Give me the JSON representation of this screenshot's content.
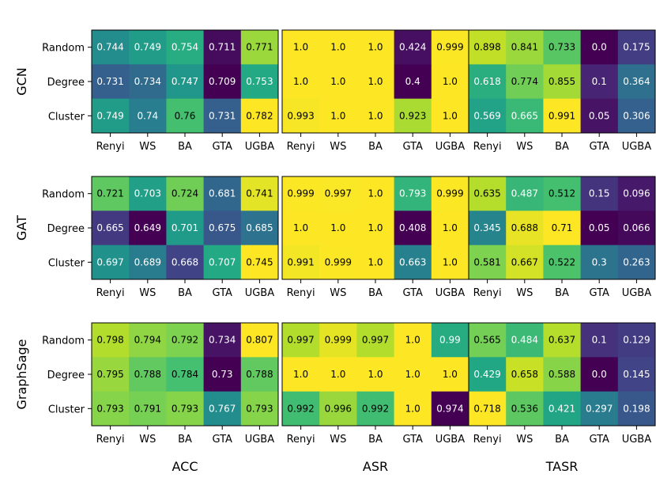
{
  "chart_data": {
    "type": "heatmap",
    "categories": [
      "Renyi",
      "WS",
      "BA",
      "GTA",
      "UGBA"
    ],
    "row_labels": [
      "Random",
      "Degree",
      "Cluster"
    ],
    "model_labels": [
      "GCN",
      "GAT",
      "GraphSage"
    ],
    "metric_labels": [
      "ACC",
      "ASR",
      "TASR"
    ],
    "colormap": "viridis",
    "panels": [
      {
        "model": "GCN",
        "metric": "ACC",
        "values": [
          [
            0.744,
            0.749,
            0.754,
            0.711,
            0.771
          ],
          [
            0.731,
            0.734,
            0.747,
            0.709,
            0.753
          ],
          [
            0.749,
            0.74,
            0.76,
            0.731,
            0.782
          ]
        ],
        "labels": [
          [
            "0.744",
            "0.749",
            "0.754",
            "0.711",
            "0.771"
          ],
          [
            "0.731",
            "0.734",
            "0.747",
            "0.709",
            "0.753"
          ],
          [
            "0.749",
            "0.74",
            "0.76",
            "0.731",
            "0.782"
          ]
        ]
      },
      {
        "model": "GCN",
        "metric": "ASR",
        "values": [
          [
            1.0,
            1.0,
            1.0,
            0.424,
            0.999
          ],
          [
            1.0,
            1.0,
            1.0,
            0.4,
            1.0
          ],
          [
            0.993,
            1.0,
            1.0,
            0.923,
            1.0
          ]
        ],
        "labels": [
          [
            "1.0",
            "1.0",
            "1.0",
            "0.424",
            "0.999"
          ],
          [
            "1.0",
            "1.0",
            "1.0",
            "0.4",
            "1.0"
          ],
          [
            "0.993",
            "1.0",
            "1.0",
            "0.923",
            "1.0"
          ]
        ]
      },
      {
        "model": "GCN",
        "metric": "TASR",
        "values": [
          [
            0.898,
            0.841,
            0.733,
            0.0,
            0.175
          ],
          [
            0.618,
            0.774,
            0.855,
            0.1,
            0.364
          ],
          [
            0.569,
            0.665,
            0.991,
            0.05,
            0.306
          ]
        ],
        "labels": [
          [
            "0.898",
            "0.841",
            "0.733",
            "0.0",
            "0.175"
          ],
          [
            "0.618",
            "0.774",
            "0.855",
            "0.1",
            "0.364"
          ],
          [
            "0.569",
            "0.665",
            "0.991",
            "0.05",
            "0.306"
          ]
        ]
      },
      {
        "model": "GAT",
        "metric": "ACC",
        "values": [
          [
            0.721,
            0.703,
            0.724,
            0.681,
            0.741
          ],
          [
            0.665,
            0.649,
            0.701,
            0.675,
            0.685
          ],
          [
            0.697,
            0.689,
            0.668,
            0.707,
            0.745
          ]
        ],
        "labels": [
          [
            "0.721",
            "0.703",
            "0.724",
            "0.681",
            "0.741"
          ],
          [
            "0.665",
            "0.649",
            "0.701",
            "0.675",
            "0.685"
          ],
          [
            "0.697",
            "0.689",
            "0.668",
            "0.707",
            "0.745"
          ]
        ]
      },
      {
        "model": "GAT",
        "metric": "ASR",
        "values": [
          [
            0.999,
            0.997,
            1.0,
            0.793,
            0.999
          ],
          [
            1.0,
            1.0,
            1.0,
            0.408,
            1.0
          ],
          [
            0.991,
            0.999,
            1.0,
            0.663,
            1.0
          ]
        ],
        "labels": [
          [
            "0.999",
            "0.997",
            "1.0",
            "0.793",
            "0.999"
          ],
          [
            "1.0",
            "1.0",
            "1.0",
            "0.408",
            "1.0"
          ],
          [
            "0.991",
            "0.999",
            "1.0",
            "0.663",
            "1.0"
          ]
        ]
      },
      {
        "model": "GAT",
        "metric": "TASR",
        "values": [
          [
            0.635,
            0.487,
            0.512,
            0.15,
            0.096
          ],
          [
            0.345,
            0.688,
            0.71,
            0.05,
            0.066
          ],
          [
            0.581,
            0.667,
            0.522,
            0.3,
            0.263
          ]
        ],
        "labels": [
          [
            "0.635",
            "0.487",
            "0.512",
            "0.15",
            "0.096"
          ],
          [
            "0.345",
            "0.688",
            "0.71",
            "0.05",
            "0.066"
          ],
          [
            "0.581",
            "0.667",
            "0.522",
            "0.3",
            "0.263"
          ]
        ]
      },
      {
        "model": "GraphSage",
        "metric": "ACC",
        "values": [
          [
            0.798,
            0.794,
            0.792,
            0.734,
            0.807
          ],
          [
            0.795,
            0.788,
            0.784,
            0.73,
            0.788
          ],
          [
            0.793,
            0.791,
            0.793,
            0.767,
            0.793
          ]
        ],
        "labels": [
          [
            "0.798",
            "0.794",
            "0.792",
            "0.734",
            "0.807"
          ],
          [
            "0.795",
            "0.788",
            "0.784",
            "0.73",
            "0.788"
          ],
          [
            "0.793",
            "0.791",
            "0.793",
            "0.767",
            "0.793"
          ]
        ]
      },
      {
        "model": "GraphSage",
        "metric": "ASR",
        "values": [
          [
            0.997,
            0.999,
            0.997,
            1.0,
            0.99
          ],
          [
            1.0,
            1.0,
            1.0,
            1.0,
            1.0
          ],
          [
            0.992,
            0.996,
            0.992,
            1.0,
            0.974
          ]
        ],
        "labels": [
          [
            "0.997",
            "0.999",
            "0.997",
            "1.0",
            "0.99"
          ],
          [
            "1.0",
            "1.0",
            "1.0",
            "1.0",
            "1.0"
          ],
          [
            "0.992",
            "0.996",
            "0.992",
            "1.0",
            "0.974"
          ]
        ]
      },
      {
        "model": "GraphSage",
        "metric": "TASR",
        "values": [
          [
            0.565,
            0.484,
            0.637,
            0.1,
            0.129
          ],
          [
            0.429,
            0.658,
            0.588,
            0.0,
            0.145
          ],
          [
            0.718,
            0.536,
            0.421,
            0.297,
            0.198
          ]
        ],
        "labels": [
          [
            "0.565",
            "0.484",
            "0.637",
            "0.1",
            "0.129"
          ],
          [
            "0.429",
            "0.658",
            "0.588",
            "0.0",
            "0.145"
          ],
          [
            "0.718",
            "0.536",
            "0.421",
            "0.297",
            "0.198"
          ]
        ]
      }
    ]
  }
}
